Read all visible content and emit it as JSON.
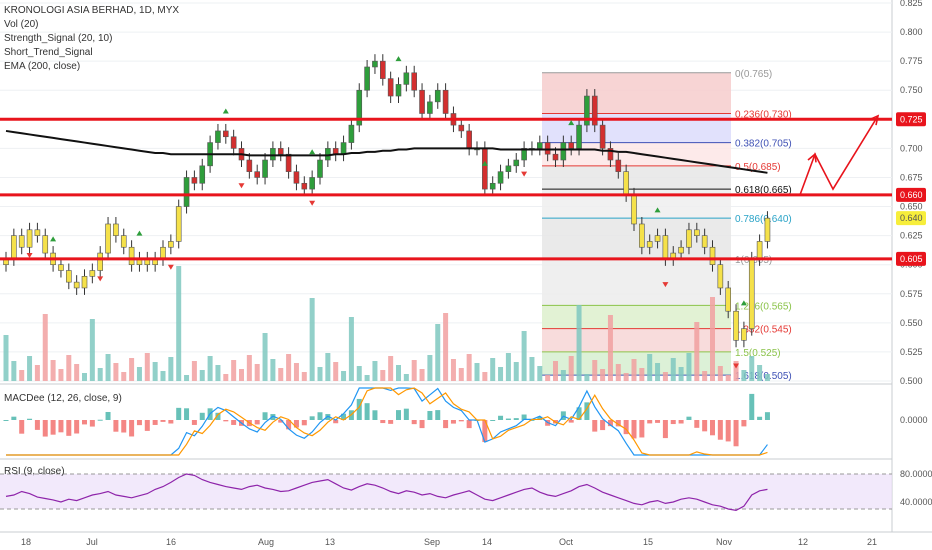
{
  "legend": {
    "symbol": "KRONOLOGI ASIA BERHAD, 1D, MYX",
    "vol": "Vol (20)",
    "strength": "Strength_Signal (20, 10)",
    "short_trend": "Short_Trend_Signal",
    "ema": "EMA (200, close)"
  },
  "macd_label": "MACDee (12, 26, close, 9)",
  "rsi_label": "RSI (9, close)",
  "colors": {
    "bull": "#c8e6c9",
    "bear": "#e53935",
    "resistance": "#e8141c",
    "ema": "#111111",
    "grid": "#eef0f3"
  },
  "chart_data": {
    "type": "candlestick",
    "title": "KRONOLOGI ASIA BERHAD, 1D, MYX",
    "ylim": [
      0.5,
      0.825
    ],
    "y_ticks": [
      0.5,
      0.525,
      0.55,
      0.575,
      0.6,
      0.625,
      0.65,
      0.675,
      0.7,
      0.725,
      0.75,
      0.775,
      0.8,
      0.825
    ],
    "y_tick_labels": [
      "0.500",
      "0.525",
      "0.550",
      "0.575",
      "0.600",
      "0.625",
      "0.650",
      "0.675",
      "0.700",
      "0.725",
      "0.750",
      "0.775",
      "0.800",
      "0.825"
    ],
    "x_tick_labels": [
      "18",
      "Jul",
      "16",
      "Aug",
      "13",
      "Sep",
      "14",
      "Oct",
      "15",
      "Nov",
      "12",
      "21"
    ],
    "closes": [
      0.605,
      0.625,
      0.615,
      0.63,
      0.625,
      0.61,
      0.6,
      0.595,
      0.585,
      0.58,
      0.59,
      0.595,
      0.61,
      0.635,
      0.625,
      0.615,
      0.6,
      0.605,
      0.6,
      0.605,
      0.615,
      0.62,
      0.65,
      0.675,
      0.67,
      0.685,
      0.705,
      0.715,
      0.71,
      0.7,
      0.69,
      0.68,
      0.675,
      0.69,
      0.7,
      0.695,
      0.68,
      0.67,
      0.665,
      0.675,
      0.69,
      0.7,
      0.695,
      0.705,
      0.72,
      0.75,
      0.77,
      0.775,
      0.76,
      0.745,
      0.755,
      0.765,
      0.75,
      0.73,
      0.74,
      0.75,
      0.73,
      0.72,
      0.715,
      0.7,
      0.7,
      0.665,
      0.67,
      0.68,
      0.685,
      0.69,
      0.7,
      0.7,
      0.705,
      0.695,
      0.69,
      0.705,
      0.7,
      0.72,
      0.745,
      0.72,
      0.7,
      0.69,
      0.68,
      0.66,
      0.635,
      0.615,
      0.62,
      0.625,
      0.605,
      0.61,
      0.615,
      0.63,
      0.625,
      0.615,
      0.6,
      0.58,
      0.56,
      0.535,
      0.545,
      0.605,
      0.62,
      0.64
    ],
    "ema_200": [
      0.715,
      0.714,
      0.713,
      0.712,
      0.711,
      0.71,
      0.709,
      0.708,
      0.707,
      0.706,
      0.705,
      0.704,
      0.703,
      0.702,
      0.701,
      0.7,
      0.699,
      0.698,
      0.697,
      0.696,
      0.696,
      0.695,
      0.695,
      0.695,
      0.695,
      0.695,
      0.695,
      0.695,
      0.695,
      0.695,
      0.695,
      0.694,
      0.694,
      0.694,
      0.694,
      0.694,
      0.694,
      0.694,
      0.694,
      0.694,
      0.694,
      0.694,
      0.695,
      0.695,
      0.696,
      0.696,
      0.697,
      0.697,
      0.698,
      0.698,
      0.699,
      0.699,
      0.7,
      0.7,
      0.7,
      0.7,
      0.7,
      0.7,
      0.7,
      0.7,
      0.7,
      0.7,
      0.7,
      0.699,
      0.699,
      0.699,
      0.699,
      0.699,
      0.699,
      0.699,
      0.699,
      0.699,
      0.699,
      0.699,
      0.699,
      0.699,
      0.698,
      0.698,
      0.697,
      0.697,
      0.696,
      0.695,
      0.694,
      0.693,
      0.692,
      0.691,
      0.69,
      0.689,
      0.688,
      0.687,
      0.686,
      0.685,
      0.684,
      0.683,
      0.682,
      0.681,
      0.68,
      0.679
    ],
    "resistance_levels": [
      {
        "value": 0.725,
        "label": "0.725"
      },
      {
        "value": 0.66,
        "label": "0.660"
      },
      {
        "value": 0.605,
        "label": "0.605"
      }
    ],
    "current_price_label": "0.640",
    "fibonacci": [
      {
        "label": "0(0.765)",
        "value": 0.765,
        "color": "#999999"
      },
      {
        "label": "0.236(0.730)",
        "value": 0.73,
        "color": "#e53935"
      },
      {
        "label": "0.382(0.705)",
        "value": 0.705,
        "color": "#3f51b5"
      },
      {
        "label": "0.5(0.685)",
        "value": 0.685,
        "color": "#e53935"
      },
      {
        "label": "0.618(0.665)",
        "value": 0.665,
        "color": "#111111"
      },
      {
        "label": "0.786(0.640)",
        "value": 0.64,
        "color": "#29a3c7"
      },
      {
        "label": "1(0.605)",
        "value": 0.605,
        "color": "#999999"
      },
      {
        "label": "1.236(0.565)",
        "value": 0.565,
        "color": "#8bc34a"
      },
      {
        "label": "1.382(0.545)",
        "value": 0.545,
        "color": "#e53935"
      },
      {
        "label": "1.5(0.525)",
        "value": 0.525,
        "color": "#8bc34a"
      },
      {
        "label": "1.618(0.505)",
        "value": 0.505,
        "color": "#3f51b5"
      }
    ],
    "macd": {
      "y_tick_label": "0.0000"
    },
    "rsi": {
      "y_tick_labels": [
        "80.0000",
        "40.0000"
      ],
      "values": [
        48,
        50,
        55,
        52,
        47,
        45,
        43,
        40,
        44,
        42,
        46,
        50,
        52,
        55,
        50,
        48,
        46,
        49,
        52,
        58,
        62,
        68,
        75,
        80,
        78,
        72,
        68,
        65,
        62,
        60,
        58,
        62,
        64,
        60,
        58,
        55,
        56,
        60,
        64,
        68,
        70,
        72,
        66,
        60,
        57,
        62,
        66,
        64,
        60,
        55,
        52,
        56,
        54,
        50,
        52,
        48,
        46,
        50,
        53,
        56,
        50,
        44,
        42,
        46,
        50,
        54,
        58,
        60,
        54,
        50,
        48,
        52,
        56,
        62,
        65,
        60,
        54,
        50,
        46,
        42,
        38,
        36,
        40,
        42,
        38,
        40,
        44,
        46,
        44,
        40,
        36,
        34,
        30,
        28,
        34,
        50,
        56,
        58
      ]
    }
  }
}
